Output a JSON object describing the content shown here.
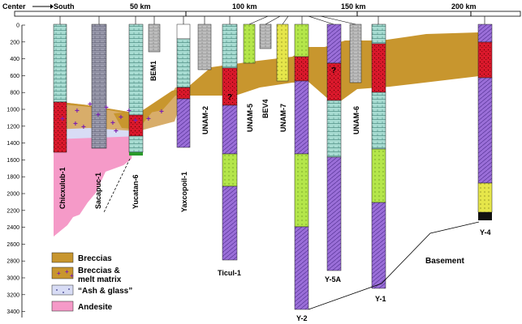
{
  "header": {
    "left_label": "Center",
    "south_label": "South",
    "km_labels": [
      "50 km",
      "100 km",
      "150 km",
      "200 km"
    ]
  },
  "depth_ticks": [
    "0",
    "200",
    "400",
    "600",
    "800",
    "1000",
    "1200",
    "1400",
    "1600",
    "1800",
    "2000",
    "2200",
    "2400",
    "2600",
    "2800",
    "3000",
    "3200",
    "3400"
  ],
  "wells": [
    "Chicxulub-1",
    "Sacapuc-1",
    "Yucatan-6",
    "BEM1",
    "Yaxcopoil-1",
    "UNAM-2",
    "Ticul-1",
    "UNAM-5",
    "BEV4",
    "UNAM-7",
    "Y-2",
    "Y-5A",
    "UNAM-6",
    "Y-1",
    "Y-4"
  ],
  "region_labels": {
    "basement": "Basement"
  },
  "annotations": [
    "?",
    "?"
  ],
  "legend": [
    {
      "label": "Breccias",
      "color": "#c8962e"
    },
    {
      "label": "Breccias & melt matrix",
      "color": "#c8962e"
    },
    {
      "label": "“Ash & glass”",
      "color": "#d8dcf5"
    },
    {
      "label": "Andesite",
      "color": "#f59ac8"
    }
  ],
  "colors": {
    "breccia": "#c8962e",
    "melt": "#d9182b",
    "andesite": "#f59ac8",
    "ash": "#d8dcf5",
    "teal": "#a8dcd2",
    "purple": "#9a6ed8",
    "lime": "#b4e64a",
    "grey": "#b8b8b8",
    "plus_marker": "#7a1fb0"
  }
}
